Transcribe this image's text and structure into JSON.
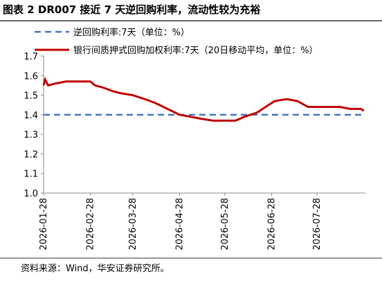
{
  "chart_data": {
    "type": "line",
    "title": "图表 2  DR007 接近 7 天逆回购利率，流动性较为充裕",
    "source": "资料来源：Wind，华安证券研究所。",
    "x": [
      "2026-01-28",
      "2026-01-29",
      "2026-01-31",
      "2026-02-05",
      "2026-02-12",
      "2026-02-20",
      "2026-02-28",
      "2026-03-03",
      "2026-03-08",
      "2026-03-15",
      "2026-03-20",
      "2026-03-28",
      "2026-04-05",
      "2026-04-12",
      "2026-04-20",
      "2026-04-28",
      "2026-05-05",
      "2026-05-12",
      "2026-05-20",
      "2026-05-28",
      "2026-06-04",
      "2026-06-10",
      "2026-06-18",
      "2026-06-24",
      "2026-06-30",
      "2026-07-08",
      "2026-07-15",
      "2026-07-22",
      "2026-07-28",
      "2026-08-05",
      "2026-08-12",
      "2026-08-19",
      "2026-08-26",
      "2026-08-28"
    ],
    "xlim": [
      "2026-01-28",
      "2026-08-29"
    ],
    "xticks": [
      "2026-01-28",
      "2026-02-28",
      "2026-03-28",
      "2026-04-28",
      "2026-05-28",
      "2026-06-28",
      "2026-07-28"
    ],
    "ylim": [
      1.0,
      1.7
    ],
    "yticks": [
      {
        "value": 1,
        "label": "1.0"
      },
      1.1,
      1.2,
      1.3,
      1.4,
      1.5,
      1.6,
      1.7
    ],
    "series": [
      {
        "name": "逆回购利率:7天（单位：%）",
        "color": "#4472c4",
        "dash": true,
        "values": [
          1.4,
          1.4,
          1.4,
          1.4,
          1.4,
          1.4,
          1.4,
          1.4,
          1.4,
          1.4,
          1.4,
          1.4,
          1.4,
          1.4,
          1.4,
          1.4,
          1.4,
          1.4,
          1.4,
          1.4,
          1.4,
          1.4,
          1.4,
          1.4,
          1.4,
          1.4,
          1.4,
          1.4,
          1.4,
          1.4,
          1.4,
          1.4,
          1.4,
          1.4
        ]
      },
      {
        "name": "银行间质押式回购加权利率:7天（20日移动平均，单位：%）",
        "color": "#c00000",
        "dash": false,
        "values": [
          1.55,
          1.58,
          1.55,
          1.56,
          1.57,
          1.57,
          1.57,
          1.55,
          1.54,
          1.52,
          1.51,
          1.5,
          1.48,
          1.46,
          1.43,
          1.4,
          1.39,
          1.38,
          1.37,
          1.37,
          1.37,
          1.39,
          1.41,
          1.44,
          1.47,
          1.48,
          1.47,
          1.44,
          1.44,
          1.44,
          1.44,
          1.43,
          1.43,
          1.42
        ]
      }
    ]
  }
}
